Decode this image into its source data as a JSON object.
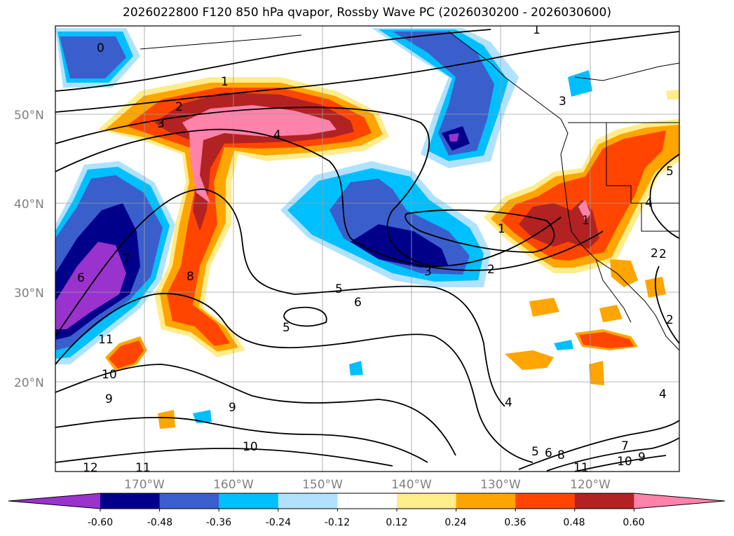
{
  "title": "2026022800 F120 850 hPa qvapor, Rossby Wave PC (2026030200 - 2026030600)",
  "map": {
    "lat_labels": [
      "50°N",
      "40°N",
      "30°N",
      "20°N"
    ],
    "lon_labels": [
      "170°W",
      "160°W",
      "150°W",
      "140°W",
      "130°W",
      "120°W"
    ],
    "contour_labels": [
      "0",
      "1",
      "1",
      "2",
      "3",
      "4",
      "3",
      "7",
      "8",
      "6",
      "5",
      "5",
      "6",
      "11",
      "10",
      "9",
      "9",
      "10",
      "11",
      "12",
      "1",
      "1",
      "2",
      "3",
      "2",
      "2",
      "4",
      "4",
      "5",
      "8",
      "6",
      "7",
      "10",
      "9",
      "11",
      "4",
      "2",
      "5"
    ]
  },
  "colorbar": {
    "ticks": [
      "-0.60",
      "-0.48",
      "-0.36",
      "-0.24",
      "-0.12",
      "0.12",
      "0.24",
      "0.36",
      "0.48",
      "0.60"
    ],
    "colors": [
      "#9a32cd",
      "#00008b",
      "#3a5fcd",
      "#00bfff",
      "#b0e2ff",
      "#ffffff",
      "#ffec8b",
      "#ffa500",
      "#ff4500",
      "#b22222",
      "#ff82ab"
    ]
  }
}
